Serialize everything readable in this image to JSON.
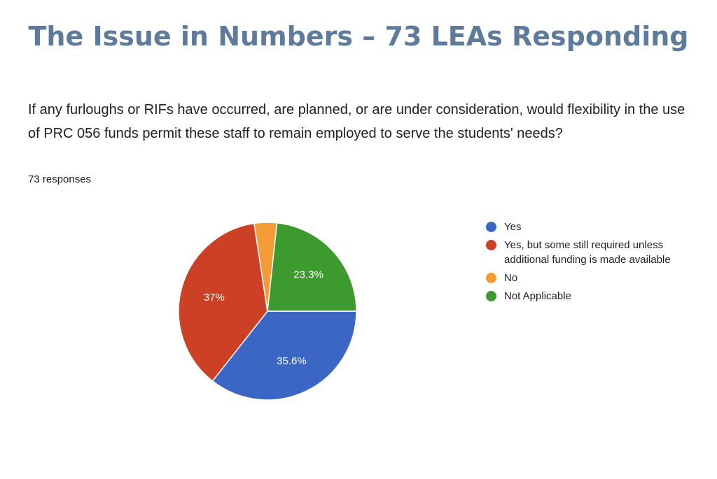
{
  "slide": {
    "title": "The Issue in Numbers – 73 LEAs Responding"
  },
  "survey": {
    "question": "If any furloughs or RIFs have occurred, are planned, or are under consideration, would flexibility in the use of PRC 056 funds permit these staff to remain employed to serve the students' needs?",
    "responses_label": "73 responses"
  },
  "chart_data": {
    "type": "pie",
    "title": "",
    "legend_position": "right",
    "slices": [
      {
        "label": "Yes",
        "value": 35.6,
        "value_label": "35.6%",
        "color": "#3c66c4"
      },
      {
        "label": "Yes, but some still required unless additional funding is made available",
        "value": 37.0,
        "value_label": "37%",
        "color": "#cc4125"
      },
      {
        "label": "No",
        "value": 4.1,
        "value_label": "",
        "color": "#f29c38"
      },
      {
        "label": "Not Applicable",
        "value": 23.3,
        "value_label": "23.3%",
        "color": "#3c9a2e"
      }
    ]
  }
}
